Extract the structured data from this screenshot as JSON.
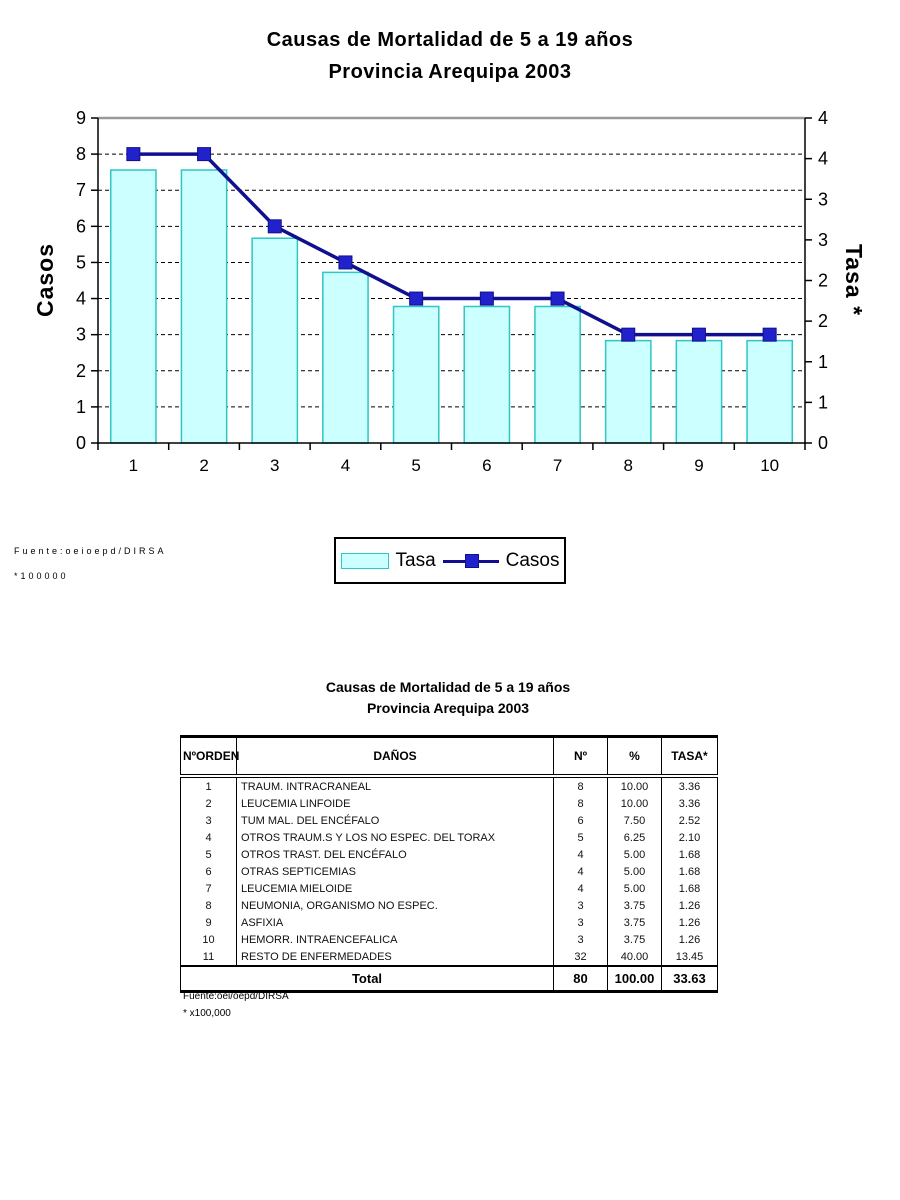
{
  "header": {
    "title_line1": "Causas de Mortalidad de 5 a 19 años",
    "title_line2": "Provincia Arequipa 2003"
  },
  "chart": {
    "left_axis_title": "Casos",
    "right_axis_title": "Tasa *",
    "source": "Fuente:oeioepd/DIRSA",
    "note": "*100000",
    "legend": {
      "tasa_label": "Tasa",
      "casos_label": "Casos"
    },
    "colors": {
      "bar_fill": "#CCFFFF",
      "bar_stroke": "#2EC6C6",
      "line": "#10108E",
      "marker": "#2222CC",
      "grid": "#000000",
      "plot_top_border": "#999999",
      "axis": "#000000"
    }
  },
  "chart_data": {
    "type": "bar+line",
    "categories": [
      "1",
      "2",
      "3",
      "4",
      "5",
      "6",
      "7",
      "8",
      "9",
      "10"
    ],
    "series": [
      {
        "name": "Tasa",
        "type": "bar",
        "axis": "right",
        "values": [
          3.36,
          3.36,
          2.52,
          2.1,
          1.68,
          1.68,
          1.68,
          1.26,
          1.26,
          1.26
        ]
      },
      {
        "name": "Casos",
        "type": "line",
        "axis": "left",
        "values": [
          8,
          8,
          6,
          5,
          4,
          4,
          4,
          3,
          3,
          3
        ]
      }
    ],
    "left_axis": {
      "title": "Casos",
      "min": 0,
      "max": 9,
      "step": 1,
      "tick_labels": [
        "0",
        "1",
        "2",
        "3",
        "4",
        "5",
        "6",
        "7",
        "8",
        "9"
      ]
    },
    "right_axis": {
      "title": "Tasa *",
      "min": 0,
      "max": 4,
      "step": 0.5,
      "tick_labels": [
        "0",
        "1",
        "1",
        "2",
        "2",
        "3",
        "3",
        "4",
        "4"
      ]
    },
    "grid": "horizontal-dashed",
    "legend_position": "bottom-center"
  },
  "table": {
    "title_line1": "Causas de Mortalidad de 5 a 19 años",
    "title_line2": "Provincia Arequipa 2003",
    "columns": [
      "NºORDEN",
      "DAÑOS",
      "Nº",
      "%",
      "TASA*"
    ],
    "rows": [
      {
        "order": "1",
        "danios": "TRAUM. INTRACRANEAL",
        "n": "8",
        "pct": "10.00",
        "tasa": "3.36"
      },
      {
        "order": "2",
        "danios": "LEUCEMIA LINFOIDE",
        "n": "8",
        "pct": "10.00",
        "tasa": "3.36"
      },
      {
        "order": "3",
        "danios": "TUM MAL. DEL ENCÉFALO",
        "n": "6",
        "pct": "7.50",
        "tasa": "2.52"
      },
      {
        "order": "4",
        "danios": "OTROS TRAUM.S Y LOS NO ESPEC. DEL TORAX",
        "n": "5",
        "pct": "6.25",
        "tasa": "2.10"
      },
      {
        "order": "5",
        "danios": "OTROS TRAST. DEL ENCÉFALO",
        "n": "4",
        "pct": "5.00",
        "tasa": "1.68"
      },
      {
        "order": "6",
        "danios": "OTRAS SEPTICEMIAS",
        "n": "4",
        "pct": "5.00",
        "tasa": "1.68"
      },
      {
        "order": "7",
        "danios": "LEUCEMIA MIELOIDE",
        "n": "4",
        "pct": "5.00",
        "tasa": "1.68"
      },
      {
        "order": "8",
        "danios": "NEUMONIA, ORGANISMO NO ESPEC.",
        "n": "3",
        "pct": "3.75",
        "tasa": "1.26"
      },
      {
        "order": "9",
        "danios": "ASFIXIA",
        "n": "3",
        "pct": "3.75",
        "tasa": "1.26"
      },
      {
        "order": "10",
        "danios": "HEMORR. INTRAENCEFALICA",
        "n": "3",
        "pct": "3.75",
        "tasa": "1.26"
      },
      {
        "order": "11",
        "danios": "RESTO DE ENFERMEDADES",
        "n": "32",
        "pct": "40.00",
        "tasa": "13.45"
      }
    ],
    "total": {
      "label": "Total",
      "n": "80",
      "pct": "100.00",
      "tasa": "33.63"
    },
    "source": "Fuente:oei/oepd/DIRSA",
    "note": "* x100,000"
  }
}
